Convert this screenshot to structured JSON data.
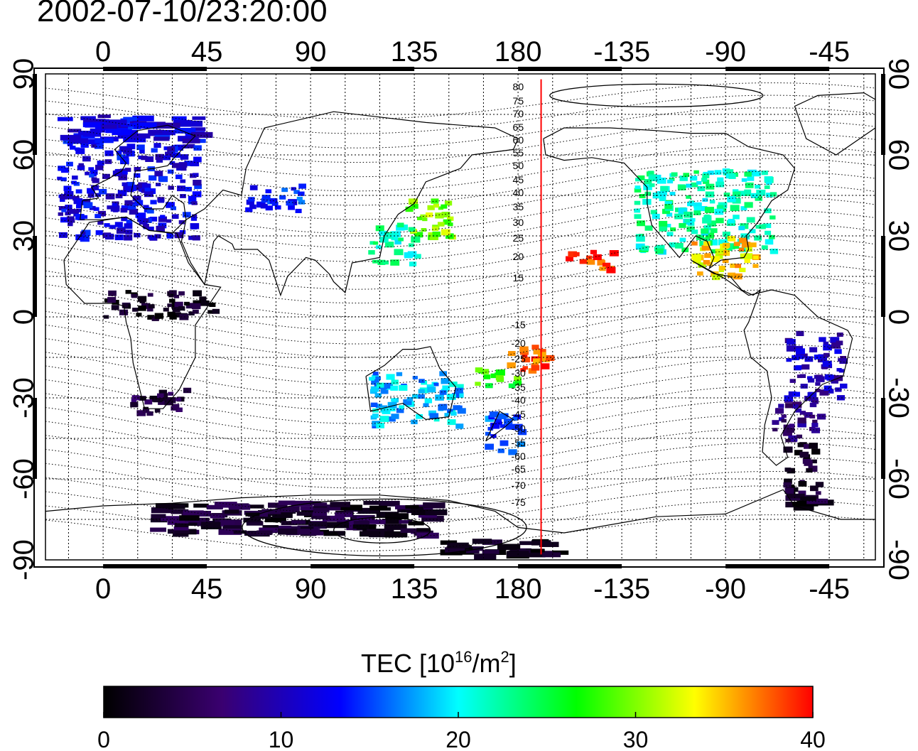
{
  "title": "2002-07-10/23:20:00",
  "map": {
    "lon_ticks": [
      0,
      45,
      90,
      135,
      180,
      -135,
      -90,
      -45
    ],
    "lat_ticks": [
      90,
      60,
      30,
      0,
      -30,
      -60,
      -90
    ],
    "mlat_labels_north": [
      "80",
      "75",
      "70",
      "65",
      "60",
      "55",
      "50",
      "45",
      "40",
      "35",
      "30",
      "25",
      "20",
      "15"
    ],
    "mlat_labels_south": [
      "-15",
      "-20",
      "-25",
      "-30",
      "-35",
      "-40",
      "-45",
      "-50",
      "-55",
      "-60",
      "-65",
      "-70",
      "-75"
    ],
    "terminator_lon": 190,
    "terminator_color": "#ff0000"
  },
  "colorbar": {
    "title_prefix": "TEC  [10",
    "title_sup1": "16",
    "title_mid": "/m",
    "title_sup2": "2",
    "title_suffix": "]",
    "ticks": [
      "0",
      "10",
      "20",
      "30",
      "40"
    ],
    "min": 0,
    "max": 40,
    "colors": [
      "#000000",
      "#3a0070",
      "#0000ff",
      "#00ffff",
      "#00ff00",
      "#ffff00",
      "#ff0000"
    ]
  },
  "chart_data": {
    "type": "heatmap",
    "xlabel": "",
    "ylabel": "",
    "xlim": [
      -25,
      335
    ],
    "ylim": [
      -90,
      90
    ],
    "value_range": [
      0,
      40
    ],
    "regions": [
      {
        "lon": [
          -20,
          40
        ],
        "lat": [
          30,
          75
        ],
        "tec": 12
      },
      {
        "lon": [
          60,
          85
        ],
        "lat": [
          40,
          50
        ],
        "tec": 14
      },
      {
        "lon": [
          130,
          150
        ],
        "lat": [
          30,
          45
        ],
        "tec": 30
      },
      {
        "lon": [
          115,
          135
        ],
        "lat": [
          20,
          35
        ],
        "tec": 22
      },
      {
        "lon": [
          230,
          290
        ],
        "lat": [
          25,
          55
        ],
        "tec": 22
      },
      {
        "lon": [
          255,
          285
        ],
        "lat": [
          15,
          30
        ],
        "tec": 34
      },
      {
        "lon": [
          200,
          220
        ],
        "lat": [
          18,
          25
        ],
        "tec": 38
      },
      {
        "lon": [
          175,
          195
        ],
        "lat": [
          -20,
          -10
        ],
        "tec": 38
      },
      {
        "lon": [
          160,
          180
        ],
        "lat": [
          -25,
          -18
        ],
        "tec": 28
      },
      {
        "lon": [
          115,
          155
        ],
        "lat": [
          -40,
          -20
        ],
        "tec": 18
      },
      {
        "lon": [
          165,
          180
        ],
        "lat": [
          -50,
          -35
        ],
        "tec": 15
      },
      {
        "lon": [
          295,
          320
        ],
        "lat": [
          -30,
          -5
        ],
        "tec": 10
      },
      {
        "lon": [
          290,
          310
        ],
        "lat": [
          -45,
          -30
        ],
        "tec": 7
      },
      {
        "lon": [
          295,
          310
        ],
        "lat": [
          -70,
          -45
        ],
        "tec": 3
      },
      {
        "lon": [
          10,
          35
        ],
        "lat": [
          -35,
          -25
        ],
        "tec": 4
      },
      {
        "lon": [
          0,
          50
        ],
        "lat": [
          0,
          10
        ],
        "tec": 2
      },
      {
        "lon": [
          20,
          140
        ],
        "lat": [
          -80,
          -68
        ],
        "tec": 3
      },
      {
        "lon": [
          145,
          195
        ],
        "lat": [
          -88,
          -82
        ],
        "tec": 1
      }
    ]
  }
}
